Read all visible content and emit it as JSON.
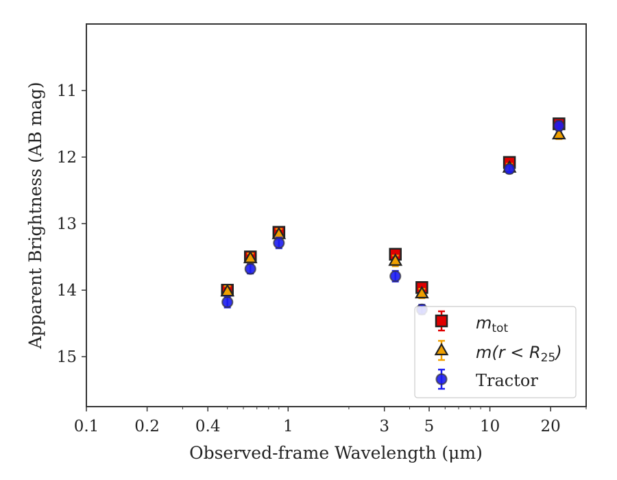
{
  "chart_data": {
    "type": "scatter",
    "title": "",
    "xlabel": "Observed-frame Wavelength (μm)",
    "ylabel": "Apparent Brightness (AB mag)",
    "xscale": "log",
    "xlim": [
      0.1,
      30
    ],
    "ylim": [
      15.75,
      10.0
    ],
    "y_inverted": true,
    "x_ticks": [
      0.1,
      0.2,
      0.4,
      1,
      3,
      5,
      10,
      20
    ],
    "x_tick_labels": [
      "0.1",
      "0.2",
      "0.4",
      "1",
      "3",
      "5",
      "10",
      "20"
    ],
    "y_ticks": [
      11,
      12,
      13,
      14,
      15
    ],
    "y_tick_labels": [
      "11",
      "12",
      "13",
      "14",
      "15"
    ],
    "grid": false,
    "legend_position": "lower-right",
    "series": [
      {
        "name": "m_tot",
        "marker": "square",
        "color": "#e00000",
        "x": [
          0.5,
          0.65,
          0.9,
          3.4,
          4.6,
          12.5,
          22.0
        ],
        "y": [
          14.0,
          13.5,
          13.13,
          13.46,
          13.96,
          12.08,
          11.5
        ],
        "yerr": [
          0.08,
          0.07,
          0.08,
          0.08,
          0.07,
          0.06,
          0.07
        ]
      },
      {
        "name": "m(r < R25)",
        "marker": "triangle",
        "color": "#f0a000",
        "x": [
          0.5,
          0.65,
          0.9,
          3.4,
          4.6,
          12.5,
          22.0
        ],
        "y": [
          14.02,
          13.52,
          13.16,
          13.56,
          14.05,
          12.16,
          11.66
        ],
        "yerr": [
          0.08,
          0.07,
          0.08,
          0.08,
          0.07,
          0.06,
          0.07
        ]
      },
      {
        "name": "Tractor",
        "marker": "circle",
        "color": "#1c1cf0",
        "x": [
          0.5,
          0.65,
          0.9,
          3.4,
          4.6,
          12.5,
          22.0
        ],
        "y": [
          14.18,
          13.68,
          13.29,
          13.79,
          14.29,
          12.18,
          11.53
        ],
        "yerr": [
          0.08,
          0.07,
          0.08,
          0.08,
          0.07,
          0.06,
          0.07
        ]
      }
    ],
    "legend": {
      "entries": [
        {
          "base": "m",
          "sub": "tot",
          "rest": ""
        },
        {
          "base": "m",
          "sub": "25",
          "rest": "(r < R"
        },
        {
          "base": "",
          "sub": "",
          "rest": "Tractor"
        }
      ]
    }
  }
}
